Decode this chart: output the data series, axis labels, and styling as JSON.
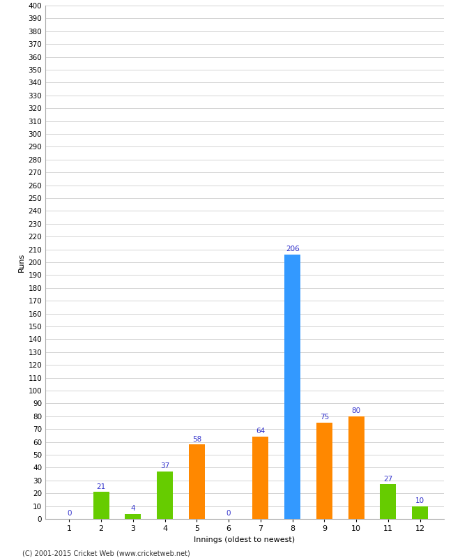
{
  "title": "",
  "xlabel": "Innings (oldest to newest)",
  "ylabel": "Runs",
  "categories": [
    1,
    2,
    3,
    4,
    5,
    6,
    7,
    8,
    9,
    10,
    11,
    12
  ],
  "values": [
    0,
    21,
    4,
    37,
    58,
    0,
    64,
    206,
    75,
    80,
    27,
    10
  ],
  "bar_colors": [
    "#66cc00",
    "#66cc00",
    "#66cc00",
    "#66cc00",
    "#ff8800",
    "#66cc00",
    "#ff8800",
    "#3399ff",
    "#ff8800",
    "#ff8800",
    "#66cc00",
    "#66cc00"
  ],
  "ylim": [
    0,
    400
  ],
  "ytick_interval": 10,
  "background_color": "#ffffff",
  "grid_color": "#cccccc",
  "annotation_color": "#3333cc",
  "footer": "(C) 2001-2015 Cricket Web (www.cricketweb.net)"
}
